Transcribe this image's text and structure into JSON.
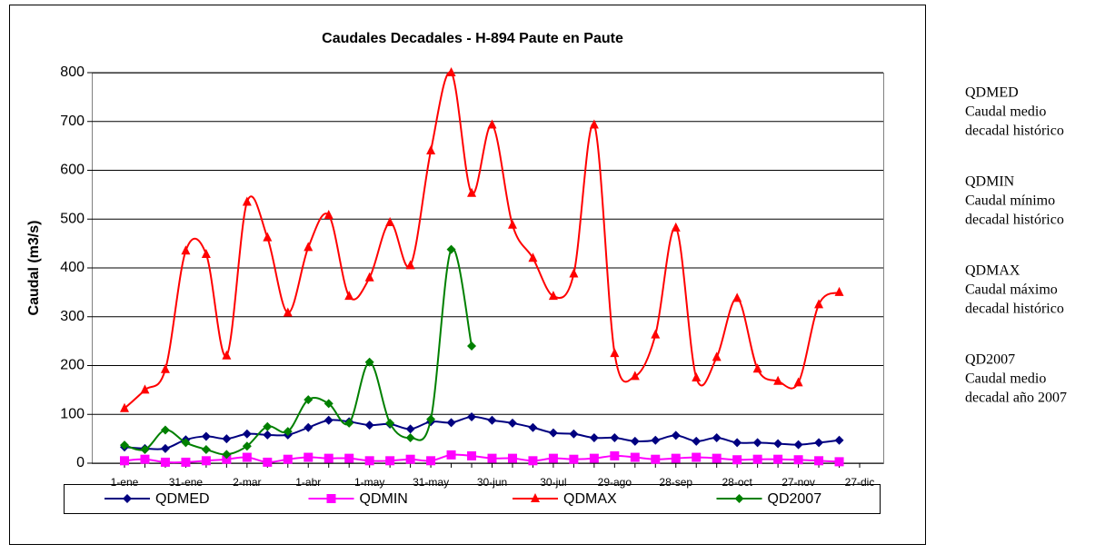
{
  "chart_data": {
    "type": "line",
    "title": "Caudales Decadales - H-894 Paute en Paute",
    "y_label": "Caudal (m3/s)",
    "categories": [
      "1-ene",
      null,
      null,
      "31-ene",
      null,
      null,
      "2-mar",
      null,
      null,
      "1-abr",
      null,
      null,
      "1-may",
      null,
      null,
      "31-may",
      null,
      null,
      "30-jun",
      null,
      null,
      "30-jul",
      null,
      null,
      "29-ago",
      null,
      null,
      "28-sep",
      null,
      null,
      "28-oct",
      null,
      null,
      "27-nov",
      null,
      null,
      "27-dic"
    ],
    "series": [
      {
        "name": "QDMED",
        "color": "#000080",
        "marker": "diamond",
        "values": [
          33,
          30,
          30,
          48,
          55,
          50,
          60,
          58,
          58,
          73,
          88,
          85,
          78,
          80,
          70,
          85,
          83,
          95,
          88,
          82,
          73,
          62,
          60,
          52,
          52,
          45,
          47,
          57,
          45,
          52,
          42,
          42,
          40,
          38,
          42,
          47,
          null
        ]
      },
      {
        "name": "QDMIN",
        "color": "#ff00ff",
        "marker": "square",
        "values": [
          5,
          8,
          2,
          2,
          5,
          8,
          12,
          2,
          8,
          12,
          10,
          10,
          5,
          5,
          8,
          5,
          17,
          15,
          10,
          10,
          5,
          10,
          8,
          10,
          15,
          12,
          8,
          10,
          12,
          10,
          7,
          8,
          8,
          7,
          5,
          3,
          null
        ]
      },
      {
        "name": "QDMAX",
        "color": "#ff0000",
        "marker": "triangle",
        "values": [
          112,
          150,
          192,
          435,
          428,
          220,
          535,
          462,
          308,
          442,
          508,
          342,
          380,
          493,
          405,
          640,
          800,
          553,
          693,
          488,
          420,
          342,
          388,
          693,
          225,
          178,
          263,
          482,
          175,
          217,
          338,
          193,
          168,
          165,
          325,
          350,
          null
        ]
      },
      {
        "name": "QD2007",
        "color": "#008000",
        "marker": "diamond",
        "values": [
          37,
          28,
          68,
          42,
          28,
          18,
          35,
          75,
          65,
          130,
          122,
          82,
          207,
          82,
          52,
          90,
          438,
          240,
          null,
          null,
          null,
          null,
          null,
          null,
          null,
          null,
          null,
          null,
          null,
          null,
          null,
          null,
          null,
          null,
          null,
          null,
          null
        ]
      }
    ],
    "ylim": [
      0,
      800
    ],
    "yticks": [
      0,
      100,
      200,
      300,
      400,
      500,
      600,
      700,
      800
    ],
    "grid": true,
    "smooth": true,
    "legend": "bottom"
  },
  "notes": [
    {
      "title": "QDMED",
      "lines": [
        "Caudal medio",
        "decadal histórico"
      ]
    },
    {
      "title": "QDMIN",
      "lines": [
        "Caudal mínimo",
        "decadal histórico"
      ]
    },
    {
      "title": "QDMAX",
      "lines": [
        "Caudal máximo",
        "decadal histórico"
      ]
    },
    {
      "title": "QD2007",
      "lines": [
        "Caudal medio",
        "decadal año 2007"
      ]
    }
  ]
}
